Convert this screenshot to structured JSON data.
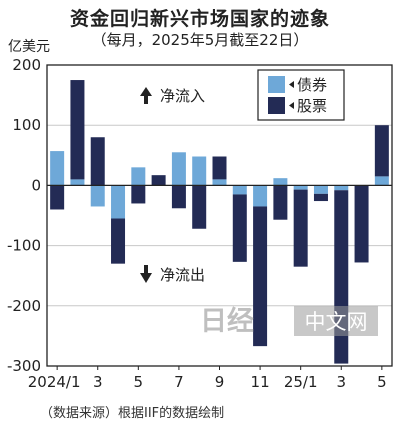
{
  "header": {
    "title": "资金回归新兴市场国家的迹象",
    "subtitle": "（每月，2025年5月截至22日）",
    "unit": "亿美元"
  },
  "footer": {
    "source": "（数据来源）根据IIF的数据绘制"
  },
  "watermark": {
    "logo": "日经",
    "site": "中文网"
  },
  "chart_data": {
    "type": "bar",
    "stacked": true,
    "title": "资金回归新兴市场国家的迹象",
    "ylabel": "亿美元",
    "ylim": [
      -300,
      200
    ],
    "yticks": [
      200,
      100,
      0,
      -100,
      -200,
      -300
    ],
    "x_tick_labels": [
      "2024/1",
      "3",
      "5",
      "7",
      "9",
      "11",
      "25/1",
      "3",
      "5"
    ],
    "categories": [
      "2024/1",
      "2024/2",
      "2024/3",
      "2024/4",
      "2024/5",
      "2024/6",
      "2024/7",
      "2024/8",
      "2024/9",
      "2024/10",
      "2024/11",
      "2024/12",
      "2025/1",
      "2025/2",
      "2025/3",
      "2025/4",
      "2025/5"
    ],
    "series": [
      {
        "name": "债券",
        "color": "#6ea8d8",
        "values": [
          57,
          10,
          -35,
          -55,
          30,
          0,
          55,
          48,
          10,
          -15,
          -35,
          12,
          -7,
          -14,
          -8,
          0,
          15
        ]
      },
      {
        "name": "股票",
        "color": "#232b55",
        "values": [
          -40,
          165,
          80,
          -75,
          -30,
          17,
          -38,
          -72,
          38,
          -112,
          -232,
          -57,
          -128,
          -12,
          -288,
          -128,
          85
        ]
      }
    ],
    "annotations": [
      {
        "text": "净流入",
        "icon": "arrow-up-icon"
      },
      {
        "text": "净流出",
        "icon": "arrow-down-icon"
      }
    ],
    "grid": true,
    "legend_position": "top-right"
  }
}
